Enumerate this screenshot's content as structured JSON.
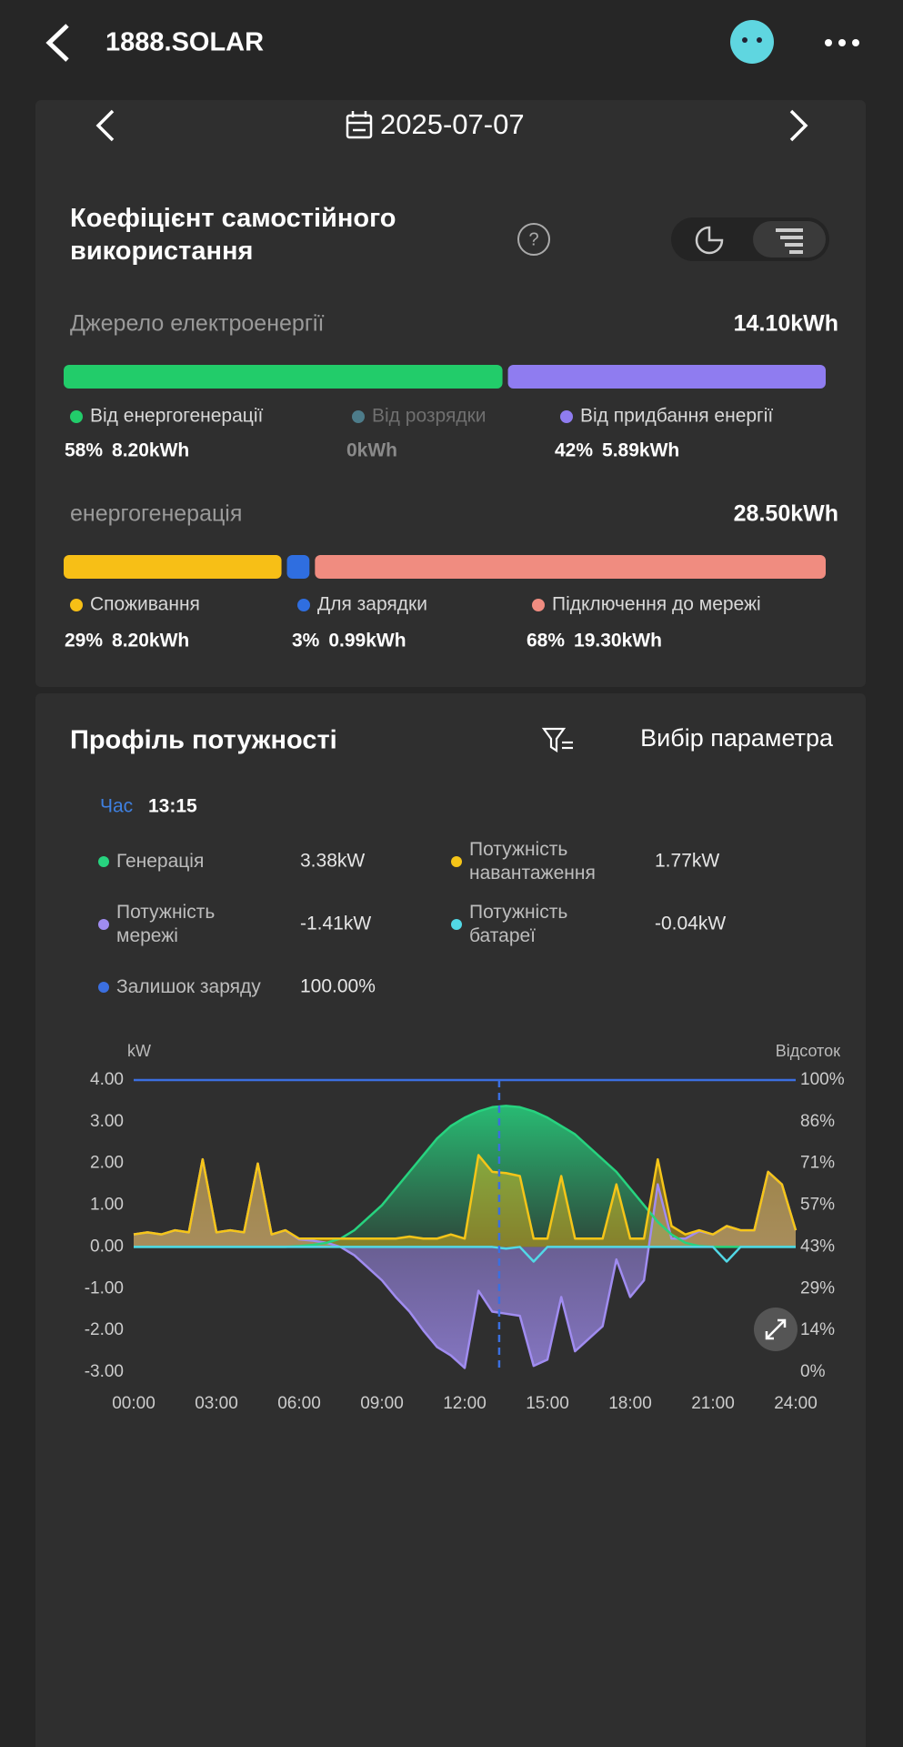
{
  "header": {
    "title": "1888.SOLAR"
  },
  "date": "2025-07-07",
  "self_use": {
    "title": "Коефіцієнт самостійного використання",
    "source": {
      "label": "Джерело електроенергії",
      "total": "14.10kWh",
      "items": [
        {
          "name": "Від енергогенерації",
          "percent": {
            "value": 58,
            "label": "58%"
          },
          "value": "8.20kWh",
          "color": "#22cc6a"
        },
        {
          "name": "Від розрядки",
          "value": "0kWh",
          "color": "#4d7c8a"
        },
        {
          "name": "Від придбання енергії",
          "percent": {
            "value": 42,
            "label": "42%"
          },
          "value": "5.89kWh",
          "color": "#8f7cf0"
        }
      ]
    },
    "generation": {
      "label": "енергогенерація",
      "total": "28.50kWh",
      "items": [
        {
          "name": "Споживання",
          "percent": {
            "value": 29,
            "label": "29%"
          },
          "value": "8.20kWh",
          "color": "#f7bf16"
        },
        {
          "name": "Для зарядки",
          "percent": {
            "value": 3,
            "label": "3%"
          },
          "value": "0.99kWh",
          "color": "#2f6ee0"
        },
        {
          "name": "Підключення до мережі",
          "percent": {
            "value": 68,
            "label": "68%"
          },
          "value": "19.30kWh",
          "color": "#f08c80"
        }
      ]
    }
  },
  "power_profile": {
    "title": "Профіль потужності",
    "filter": "Вибір параметра",
    "time_label": "Час",
    "time": "13:15",
    "readings": [
      {
        "name": "Генерація",
        "value": "3.38kW",
        "color": "#27d37f"
      },
      {
        "name": "Потужність навантаження",
        "value": "1.77kW",
        "color": "#f5c518"
      },
      {
        "name": "Потужність мережі",
        "value": "-1.41kW",
        "color": "#a08cf0"
      },
      {
        "name": "Потужність батареї",
        "value": "-0.04kW",
        "color": "#52d8e6"
      },
      {
        "name": "Залишок заряду",
        "value": "100.00%",
        "color": "#3b6fe0"
      }
    ]
  },
  "chart_data": {
    "type": "line",
    "y_label": "kW",
    "y2_label": "Відсоток",
    "cursor_x": 13.25,
    "x": [
      0,
      0.5,
      1,
      1.5,
      2,
      2.5,
      3,
      3.5,
      4,
      4.5,
      5,
      5.5,
      6,
      6.5,
      7,
      7.5,
      8,
      8.5,
      9,
      9.5,
      10,
      10.5,
      11,
      11.5,
      12,
      12.5,
      13,
      13.5,
      14,
      14.5,
      15,
      15.5,
      16,
      16.5,
      17,
      17.5,
      18,
      18.5,
      19,
      19.5,
      20,
      20.5,
      21,
      21.5,
      22,
      22.5,
      23,
      23.5,
      24
    ],
    "xlim": [
      0,
      24
    ],
    "xticks": [
      {
        "value": 0,
        "label": "00:00"
      },
      {
        "value": 3,
        "label": "03:00"
      },
      {
        "value": 6,
        "label": "06:00"
      },
      {
        "value": 9,
        "label": "09:00"
      },
      {
        "value": 12,
        "label": "12:00"
      },
      {
        "value": 15,
        "label": "15:00"
      },
      {
        "value": 18,
        "label": "18:00"
      },
      {
        "value": 21,
        "label": "21:00"
      },
      {
        "value": 24,
        "label": "24:00"
      }
    ],
    "ylim": [
      -3,
      4
    ],
    "yticks": [
      {
        "value": 4,
        "label": "4.00"
      },
      {
        "value": 3,
        "label": "3.00"
      },
      {
        "value": 2,
        "label": "2.00"
      },
      {
        "value": 1,
        "label": "1.00"
      },
      {
        "value": 0,
        "label": "0.00"
      },
      {
        "value": -1,
        "label": "-1.00"
      },
      {
        "value": -2,
        "label": "-2.00"
      },
      {
        "value": -3,
        "label": "-3.00"
      }
    ],
    "y2lim": [
      0,
      100
    ],
    "y2ticks": [
      {
        "value": 100,
        "label": "100%"
      },
      {
        "value": 85.71,
        "label": "86%"
      },
      {
        "value": 71.43,
        "label": "71%"
      },
      {
        "value": 57.14,
        "label": "57%"
      },
      {
        "value": 42.86,
        "label": "43%"
      },
      {
        "value": 28.57,
        "label": "29%"
      },
      {
        "value": 14.29,
        "label": "14%"
      },
      {
        "value": 0,
        "label": "0%"
      }
    ],
    "series": [
      {
        "name": "Потужність мережі",
        "color": "#a08cf0",
        "values": [
          0.3,
          0.35,
          0.3,
          0.4,
          0.35,
          2.1,
          0.35,
          0.4,
          0.35,
          2.0,
          0.3,
          0.4,
          0.18,
          0.15,
          0.1,
          0.0,
          -0.2,
          -0.5,
          -0.8,
          -1.2,
          -1.55,
          -2.0,
          -2.4,
          -2.6,
          -2.9,
          -1.05,
          -1.55,
          -1.6,
          -1.65,
          -2.85,
          -2.7,
          -1.2,
          -2.5,
          -2.2,
          -1.9,
          -0.3,
          -1.2,
          -0.8,
          1.5,
          0.2,
          0.2,
          0.38,
          0.3,
          0.5,
          0.4,
          0.4,
          1.8,
          1.5,
          0.4
        ]
      },
      {
        "name": "Генерація",
        "color": "#27d37f",
        "values": [
          0,
          0,
          0,
          0,
          0,
          0,
          0,
          0,
          0,
          0,
          0,
          0,
          0.02,
          0.05,
          0.1,
          0.2,
          0.4,
          0.7,
          1.0,
          1.4,
          1.8,
          2.2,
          2.6,
          2.9,
          3.1,
          3.25,
          3.35,
          3.38,
          3.35,
          3.25,
          3.1,
          2.9,
          2.7,
          2.4,
          2.1,
          1.8,
          1.4,
          1.0,
          0.6,
          0.3,
          0.1,
          0.02,
          0,
          0,
          0,
          0,
          0,
          0,
          0
        ]
      },
      {
        "name": "Потужність навантаження",
        "color": "#f5c518",
        "values": [
          0.3,
          0.35,
          0.3,
          0.4,
          0.35,
          2.1,
          0.35,
          0.4,
          0.35,
          2.0,
          0.3,
          0.4,
          0.2,
          0.2,
          0.2,
          0.2,
          0.2,
          0.2,
          0.2,
          0.2,
          0.25,
          0.2,
          0.2,
          0.3,
          0.2,
          2.2,
          1.8,
          1.77,
          1.7,
          0.2,
          0.2,
          1.7,
          0.2,
          0.2,
          0.2,
          1.5,
          0.2,
          0.2,
          2.1,
          0.5,
          0.3,
          0.4,
          0.3,
          0.5,
          0.4,
          0.4,
          1.8,
          1.5,
          0.4
        ]
      },
      {
        "name": "Потужність батареї",
        "color": "#52d8e6",
        "values": [
          0,
          0,
          0,
          0,
          0,
          0,
          0,
          0,
          0,
          0,
          0,
          0,
          0,
          0,
          0,
          0,
          0,
          0,
          0,
          0,
          0,
          0,
          0,
          0,
          0,
          0,
          0,
          -0.04,
          0,
          -0.35,
          0,
          0,
          0,
          0,
          0,
          0,
          0,
          0,
          0,
          0,
          0,
          0,
          0,
          -0.35,
          0,
          0,
          0,
          0,
          0
        ]
      },
      {
        "name": "Залишок заряду",
        "color": "#3b6fe0",
        "axis": "y2",
        "values": [
          100,
          100,
          100,
          100,
          100,
          100,
          100,
          100,
          100,
          100,
          100,
          100,
          100,
          100,
          100,
          100,
          100,
          100,
          100,
          100,
          100,
          100,
          100,
          100,
          100,
          100,
          100,
          100,
          100,
          100,
          100,
          100,
          100,
          100,
          100,
          100,
          100,
          100,
          100,
          100,
          100,
          100,
          100,
          100,
          100,
          100,
          100,
          100,
          100
        ]
      }
    ]
  }
}
